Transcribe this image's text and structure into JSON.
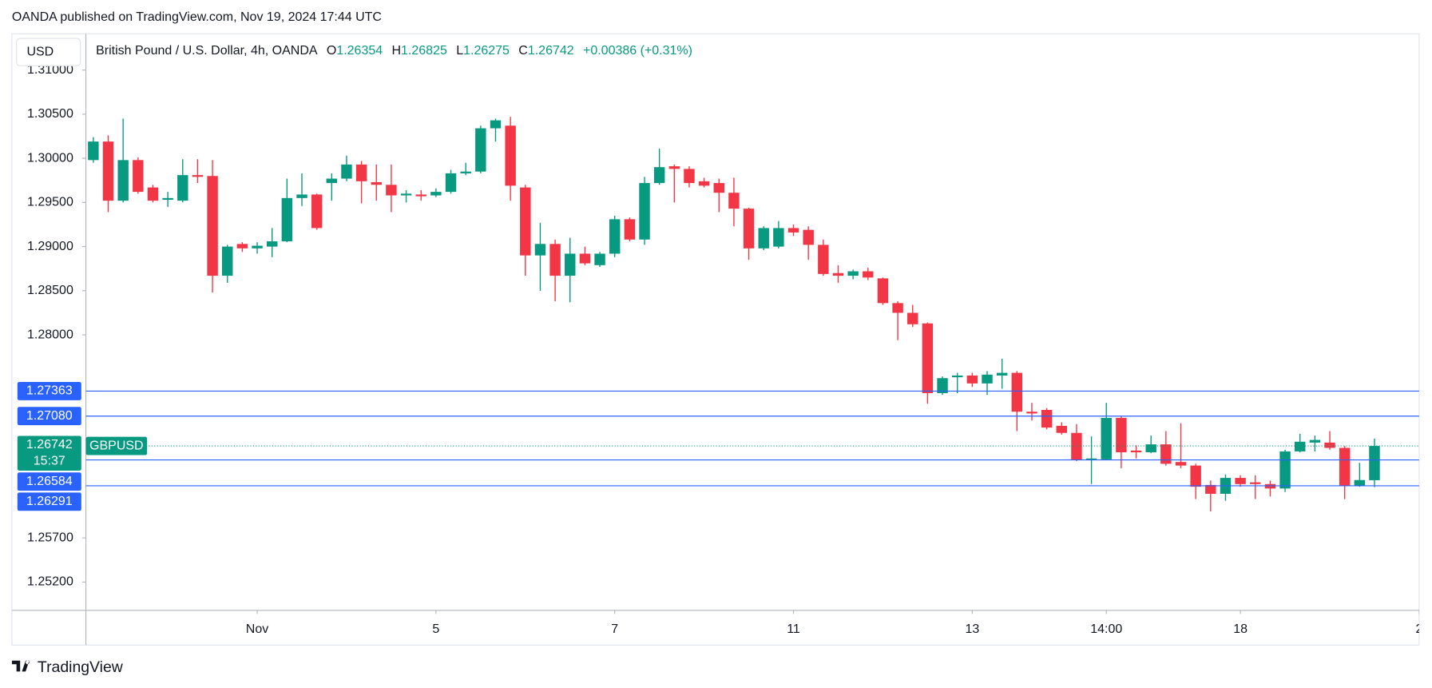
{
  "header": "OANDA published on TradingView.com, Nov 19, 2024 17:44 UTC",
  "footer": "TradingView",
  "chart_data": {
    "type": "candlestick",
    "title": "British Pound / U.S. Dollar, 4h, OANDA",
    "ohlc_labels": [
      "O",
      "H",
      "L",
      "C"
    ],
    "change": "+0.00386 (+0.31%)",
    "currency": "USD",
    "symbol": "GBPUSD",
    "countdown": "15:37",
    "up_color": "#089981",
    "down_color": "#f23645",
    "price_line_color": "#2962ff",
    "open": [
      1.2998,
      1.3019,
      1.2952,
      1.2998,
      1.2967,
      1.2953,
      1.2952,
      1.2981,
      1.298,
      1.2867,
      1.2903,
      1.2898,
      1.29,
      1.2906,
      1.2955,
      1.2959,
      1.2972,
      1.2977,
      1.2993,
      1.2973,
      1.297,
      1.2958,
      1.2959,
      1.2958,
      1.2962,
      1.2983,
      1.2985,
      1.3034,
      1.3037,
      1.2967,
      1.289,
      1.2903,
      1.2867,
      1.2892,
      1.2879,
      1.2892,
      1.2931,
      1.2908,
      1.2972,
      1.2991,
      1.2988,
      1.2974,
      1.2972,
      1.2961,
      1.2943,
      1.2898,
      1.29,
      1.2921,
      1.2919,
      1.2902,
      1.287,
      1.2867,
      1.2872,
      1.2864,
      1.2836,
      1.2825,
      1.2813,
      1.2734,
      1.2752,
      1.2754,
      1.2745,
      1.2754,
      1.2757,
      1.2713,
      1.2715,
      1.2697,
      1.2689,
      1.2658,
      1.2659,
      1.2706,
      1.2669,
      1.2667,
      1.2676,
      1.2656,
      1.2652,
      1.263,
      1.262,
      1.2638,
      1.2633,
      1.2631,
      1.2626,
      1.2668,
      1.2678,
      1.2678,
      1.2672,
      1.2629,
      1.26354
    ],
    "high": [
      1.3024,
      1.3026,
      1.3045,
      1.3001,
      1.297,
      1.2962,
      1.2999,
      1.2999,
      1.2998,
      1.2902,
      1.2905,
      1.2905,
      1.2921,
      1.2977,
      1.2983,
      1.296,
      1.2983,
      1.3003,
      1.2997,
      1.2993,
      1.2993,
      1.2964,
      1.2964,
      1.2966,
      1.2987,
      1.2995,
      1.3037,
      1.3045,
      1.3047,
      1.297,
      1.2927,
      1.2908,
      1.291,
      1.29,
      1.2894,
      1.2935,
      1.2933,
      1.2979,
      1.3011,
      1.2993,
      1.2991,
      1.2978,
      1.2977,
      1.2978,
      1.2944,
      1.2923,
      1.2929,
      1.2925,
      1.2923,
      1.2908,
      1.2879,
      1.2874,
      1.2876,
      1.2865,
      1.2838,
      1.2834,
      1.2814,
      1.2753,
      1.2757,
      1.2757,
      1.2759,
      1.2773,
      1.2759,
      1.2723,
      1.2717,
      1.2701,
      1.2699,
      1.2685,
      1.2723,
      1.2708,
      1.2675,
      1.2686,
      1.2691,
      1.27,
      1.2654,
      1.2635,
      1.2642,
      1.2641,
      1.2641,
      1.2635,
      1.267,
      1.2688,
      1.2686,
      1.2691,
      1.2674,
      1.2655,
      1.26825
    ],
    "low": [
      1.2995,
      1.2939,
      1.295,
      1.296,
      1.295,
      1.2945,
      1.295,
      1.2972,
      1.2848,
      1.2859,
      1.2894,
      1.2892,
      1.2888,
      1.2905,
      1.2946,
      1.2919,
      1.2952,
      1.2974,
      1.2949,
      1.2952,
      1.2939,
      1.295,
      1.2952,
      1.2956,
      1.296,
      1.2981,
      1.2983,
      1.3019,
      1.2952,
      1.2867,
      1.285,
      1.2838,
      1.2837,
      1.2879,
      1.2877,
      1.2888,
      1.2906,
      1.2902,
      1.297,
      1.295,
      1.2967,
      1.2967,
      1.2939,
      1.2923,
      1.2885,
      1.2896,
      1.2898,
      1.2912,
      1.2885,
      1.2867,
      1.2859,
      1.2863,
      1.2862,
      1.2834,
      1.2794,
      1.2809,
      1.2722,
      1.2732,
      1.2734,
      1.2741,
      1.2732,
      1.2739,
      1.2691,
      1.2703,
      1.2693,
      1.2687,
      1.2657,
      1.2631,
      1.2658,
      1.2649,
      1.266,
      1.2666,
      1.2652,
      1.2649,
      1.2614,
      1.26,
      1.2612,
      1.2628,
      1.2614,
      1.2617,
      1.2622,
      1.2667,
      1.2668,
      1.267,
      1.2614,
      1.2628,
      1.26275
    ],
    "close": [
      1.3019,
      1.2952,
      1.2998,
      1.2962,
      1.2952,
      1.2955,
      1.2981,
      1.2979,
      1.2867,
      1.29,
      1.2898,
      1.2901,
      1.2906,
      1.2955,
      1.2959,
      1.2921,
      1.2977,
      1.2993,
      1.2974,
      1.297,
      1.2958,
      1.296,
      1.2957,
      1.2962,
      1.2983,
      1.2985,
      1.3034,
      1.3043,
      1.2969,
      1.289,
      1.2903,
      1.2867,
      1.2892,
      1.2881,
      1.2892,
      1.2931,
      1.2908,
      1.2972,
      1.299,
      1.2988,
      1.2972,
      1.2969,
      1.2961,
      1.2943,
      1.2898,
      1.2921,
      1.2921,
      1.2916,
      1.2902,
      1.2869,
      1.2867,
      1.2872,
      1.2865,
      1.2836,
      1.2825,
      1.2812,
      1.2734,
      1.2751,
      1.2754,
      1.2745,
      1.2755,
      1.2757,
      1.2713,
      1.2711,
      1.2695,
      1.2689,
      1.2658,
      1.266,
      1.2706,
      1.2667,
      1.2667,
      1.2676,
      1.2654,
      1.2652,
      1.2628,
      1.262,
      1.2638,
      1.2631,
      1.2631,
      1.2626,
      1.2668,
      1.2679,
      1.2681,
      1.2672,
      1.2629,
      1.26356,
      1.26742
    ],
    "price_lines": [
      1.27363,
      {
        "value": 1.2708,
        "label": "1.27080"
      },
      1.26584,
      1.26291
    ],
    "xlim": [
      -0.5,
      89
    ],
    "xticks": [
      {
        "value": 11,
        "label": "Nov"
      },
      {
        "value": 23,
        "label": "5"
      },
      {
        "value": 35,
        "label": "7"
      },
      {
        "value": 47,
        "label": "11"
      },
      {
        "value": 59,
        "label": "13"
      },
      {
        "value": 68,
        "label": "14:00"
      },
      {
        "value": 77,
        "label": "18"
      },
      {
        "value": 89,
        "label": "2"
      }
    ],
    "ylim": [
      1.2488,
      1.314
    ],
    "yticks": [
      {
        "value": 1.31,
        "label": "1.31000"
      },
      {
        "value": 1.305,
        "label": "1.30500"
      },
      {
        "value": 1.3,
        "label": "1.30000"
      },
      {
        "value": 1.295,
        "label": "1.29500"
      },
      {
        "value": 1.29,
        "label": "1.29000"
      },
      {
        "value": 1.285,
        "label": "1.28500"
      },
      {
        "value": 1.28,
        "label": "1.28000"
      },
      {
        "value": 1.257,
        "label": "1.25700"
      },
      {
        "value": 1.252,
        "label": "1.25200"
      }
    ]
  }
}
